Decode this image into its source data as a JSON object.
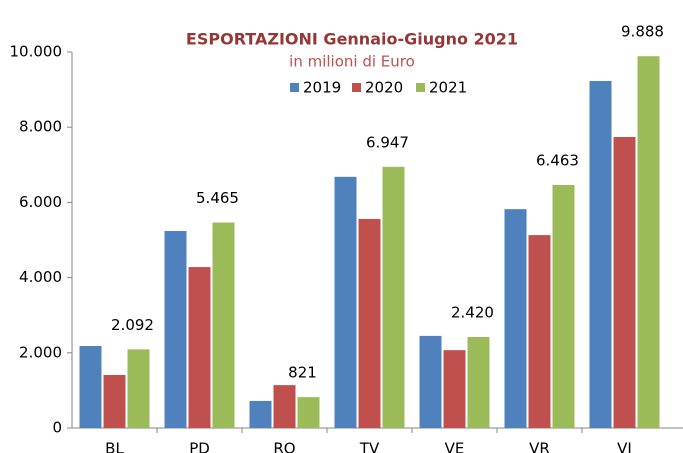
{
  "chart_data": {
    "type": "bar",
    "title": "ESPORTAZIONI Gennaio-Giugno 2021",
    "subtitle": "in milioni di Euro",
    "categories": [
      "BL",
      "PD",
      "RO",
      "TV",
      "VE",
      "VR",
      "VI"
    ],
    "series": [
      {
        "name": "2019",
        "color": "#4f81bd",
        "values": [
          2180,
          5240,
          720,
          6680,
          2450,
          5820,
          9230
        ]
      },
      {
        "name": "2020",
        "color": "#c0504d",
        "values": [
          1410,
          4280,
          1140,
          5560,
          2070,
          5130,
          7740
        ]
      },
      {
        "name": "2021",
        "color": "#9bbb59",
        "values": [
          2092,
          5465,
          821,
          6947,
          2420,
          6463,
          9888
        ],
        "value_labels": [
          "2.092",
          "5.465",
          "821",
          "6.947",
          "2.420",
          "6.463",
          "9.888"
        ]
      }
    ],
    "ylim": [
      0,
      10000
    ],
    "yticks": [
      0,
      {
        "value": 2000,
        "label": "2.000"
      },
      {
        "value": 4000,
        "label": "4.000"
      },
      {
        "value": 6000,
        "label": "6.000"
      },
      {
        "value": 8000,
        "label": "8.000"
      },
      {
        "value": 10000,
        "label": "10.000"
      }
    ],
    "legend": "top",
    "grid": false
  }
}
